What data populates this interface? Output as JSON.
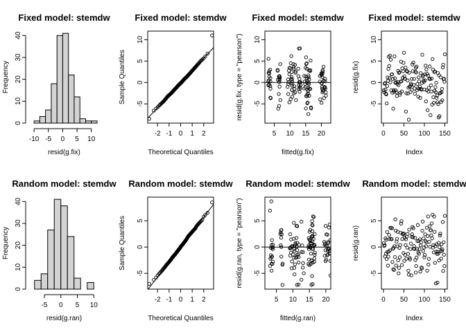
{
  "chart_data": [
    {
      "type": "histogram",
      "title": "Fixed model: stemdw",
      "xlabel": "resid(g.fix)",
      "ylabel": "Frequency",
      "xlim": [
        -11,
        12
      ],
      "ylim": [
        0,
        42
      ],
      "xticks": [
        -10,
        -5,
        0,
        5,
        10
      ],
      "yticks": [
        0,
        10,
        20,
        30,
        40
      ],
      "bins": [
        {
          "from": -10,
          "to": -8,
          "count": 1
        },
        {
          "from": -8,
          "to": -6,
          "count": 3
        },
        {
          "from": -6,
          "to": -4,
          "count": 6
        },
        {
          "from": -4,
          "to": -2,
          "count": 18
        },
        {
          "from": -2,
          "to": 0,
          "count": 40
        },
        {
          "from": 0,
          "to": 2,
          "count": 41
        },
        {
          "from": 2,
          "to": 4,
          "count": 22
        },
        {
          "from": 4,
          "to": 6,
          "count": 12
        },
        {
          "from": 6,
          "to": 8,
          "count": 2
        },
        {
          "from": 8,
          "to": 10,
          "count": 1
        },
        {
          "from": 10,
          "to": 12,
          "count": 1
        }
      ]
    },
    {
      "type": "qq",
      "title": "Fixed model: stemdw",
      "xlabel": "Theoretical Quantiles",
      "ylabel": "Sample Quantiles",
      "xlim": [
        -2.85,
        2.85
      ],
      "ylim": [
        -9.5,
        12
      ],
      "xticks": [
        -2,
        -1,
        0,
        1,
        2
      ],
      "yticks": [
        -5,
        0,
        5,
        10
      ],
      "line": {
        "intercept": -0.1,
        "slope": 2.9
      }
    },
    {
      "type": "scatter",
      "title": "Fixed model: stemdw",
      "xlabel": "fitted(g.fix)",
      "ylabel": "resid(g.fix, type = \"pearson\")",
      "xlim": [
        2,
        23
      ],
      "ylim": [
        -9.5,
        12
      ],
      "xticks": [
        5,
        10,
        15,
        20
      ],
      "yticks": [
        -5,
        0,
        5,
        10
      ],
      "hline": 0
    },
    {
      "type": "scatter",
      "title": "Fixed model: stemdw",
      "xlabel": "Index",
      "ylabel": "resid(g.fix)",
      "xlim": [
        -5,
        156
      ],
      "ylim": [
        -9.5,
        12
      ],
      "xticks": [
        0,
        50,
        100,
        150
      ],
      "yticks": [
        -5,
        0,
        5,
        10
      ]
    },
    {
      "type": "histogram",
      "title": "Random model: stemdw",
      "xlabel": "resid(g.ran)",
      "ylabel": "Frequency",
      "xlim": [
        -9,
        11
      ],
      "ylim": [
        0,
        42
      ],
      "xticks": [
        -5,
        0,
        5,
        10
      ],
      "yticks": [
        0,
        10,
        20,
        30,
        40
      ],
      "bins": [
        {
          "from": -8,
          "to": -6,
          "count": 4
        },
        {
          "from": -6,
          "to": -4,
          "count": 7
        },
        {
          "from": -4,
          "to": -2,
          "count": 27
        },
        {
          "from": -2,
          "to": 0,
          "count": 41
        },
        {
          "from": 0,
          "to": 2,
          "count": 38
        },
        {
          "from": 2,
          "to": 4,
          "count": 24
        },
        {
          "from": 4,
          "to": 6,
          "count": 5
        },
        {
          "from": 6,
          "to": 8,
          "count": 0
        },
        {
          "from": 8,
          "to": 10,
          "count": 3
        }
      ]
    },
    {
      "type": "qq",
      "title": "Random model: stemdw",
      "xlabel": "Theoretical Quantiles",
      "ylabel": "Sample Quantiles",
      "xlim": [
        -2.85,
        2.85
      ],
      "ylim": [
        -8,
        9.5
      ],
      "xticks": [
        -2,
        -1,
        0,
        1,
        2
      ],
      "yticks": [
        -5,
        0,
        5
      ],
      "line": {
        "intercept": 0,
        "slope": 2.85
      }
    },
    {
      "type": "scatter",
      "title": "Random model: stemdw",
      "xlabel": "fitted(g.ran)",
      "ylabel": "resid(g.ran, type = \"pearson\")",
      "xlim": [
        1.5,
        21.5
      ],
      "ylim": [
        -8,
        9.5
      ],
      "xticks": [
        5,
        10,
        15,
        20
      ],
      "yticks": [
        -5,
        0,
        5
      ],
      "hline": 0
    },
    {
      "type": "scatter",
      "title": "Random model: stemdw",
      "xlabel": "Index",
      "ylabel": "resid(g.ran)",
      "xlim": [
        -5,
        156
      ],
      "ylim": [
        -8,
        9.5
      ],
      "xticks": [
        0,
        50,
        100,
        150
      ],
      "yticks": [
        -5,
        0,
        5
      ]
    }
  ]
}
